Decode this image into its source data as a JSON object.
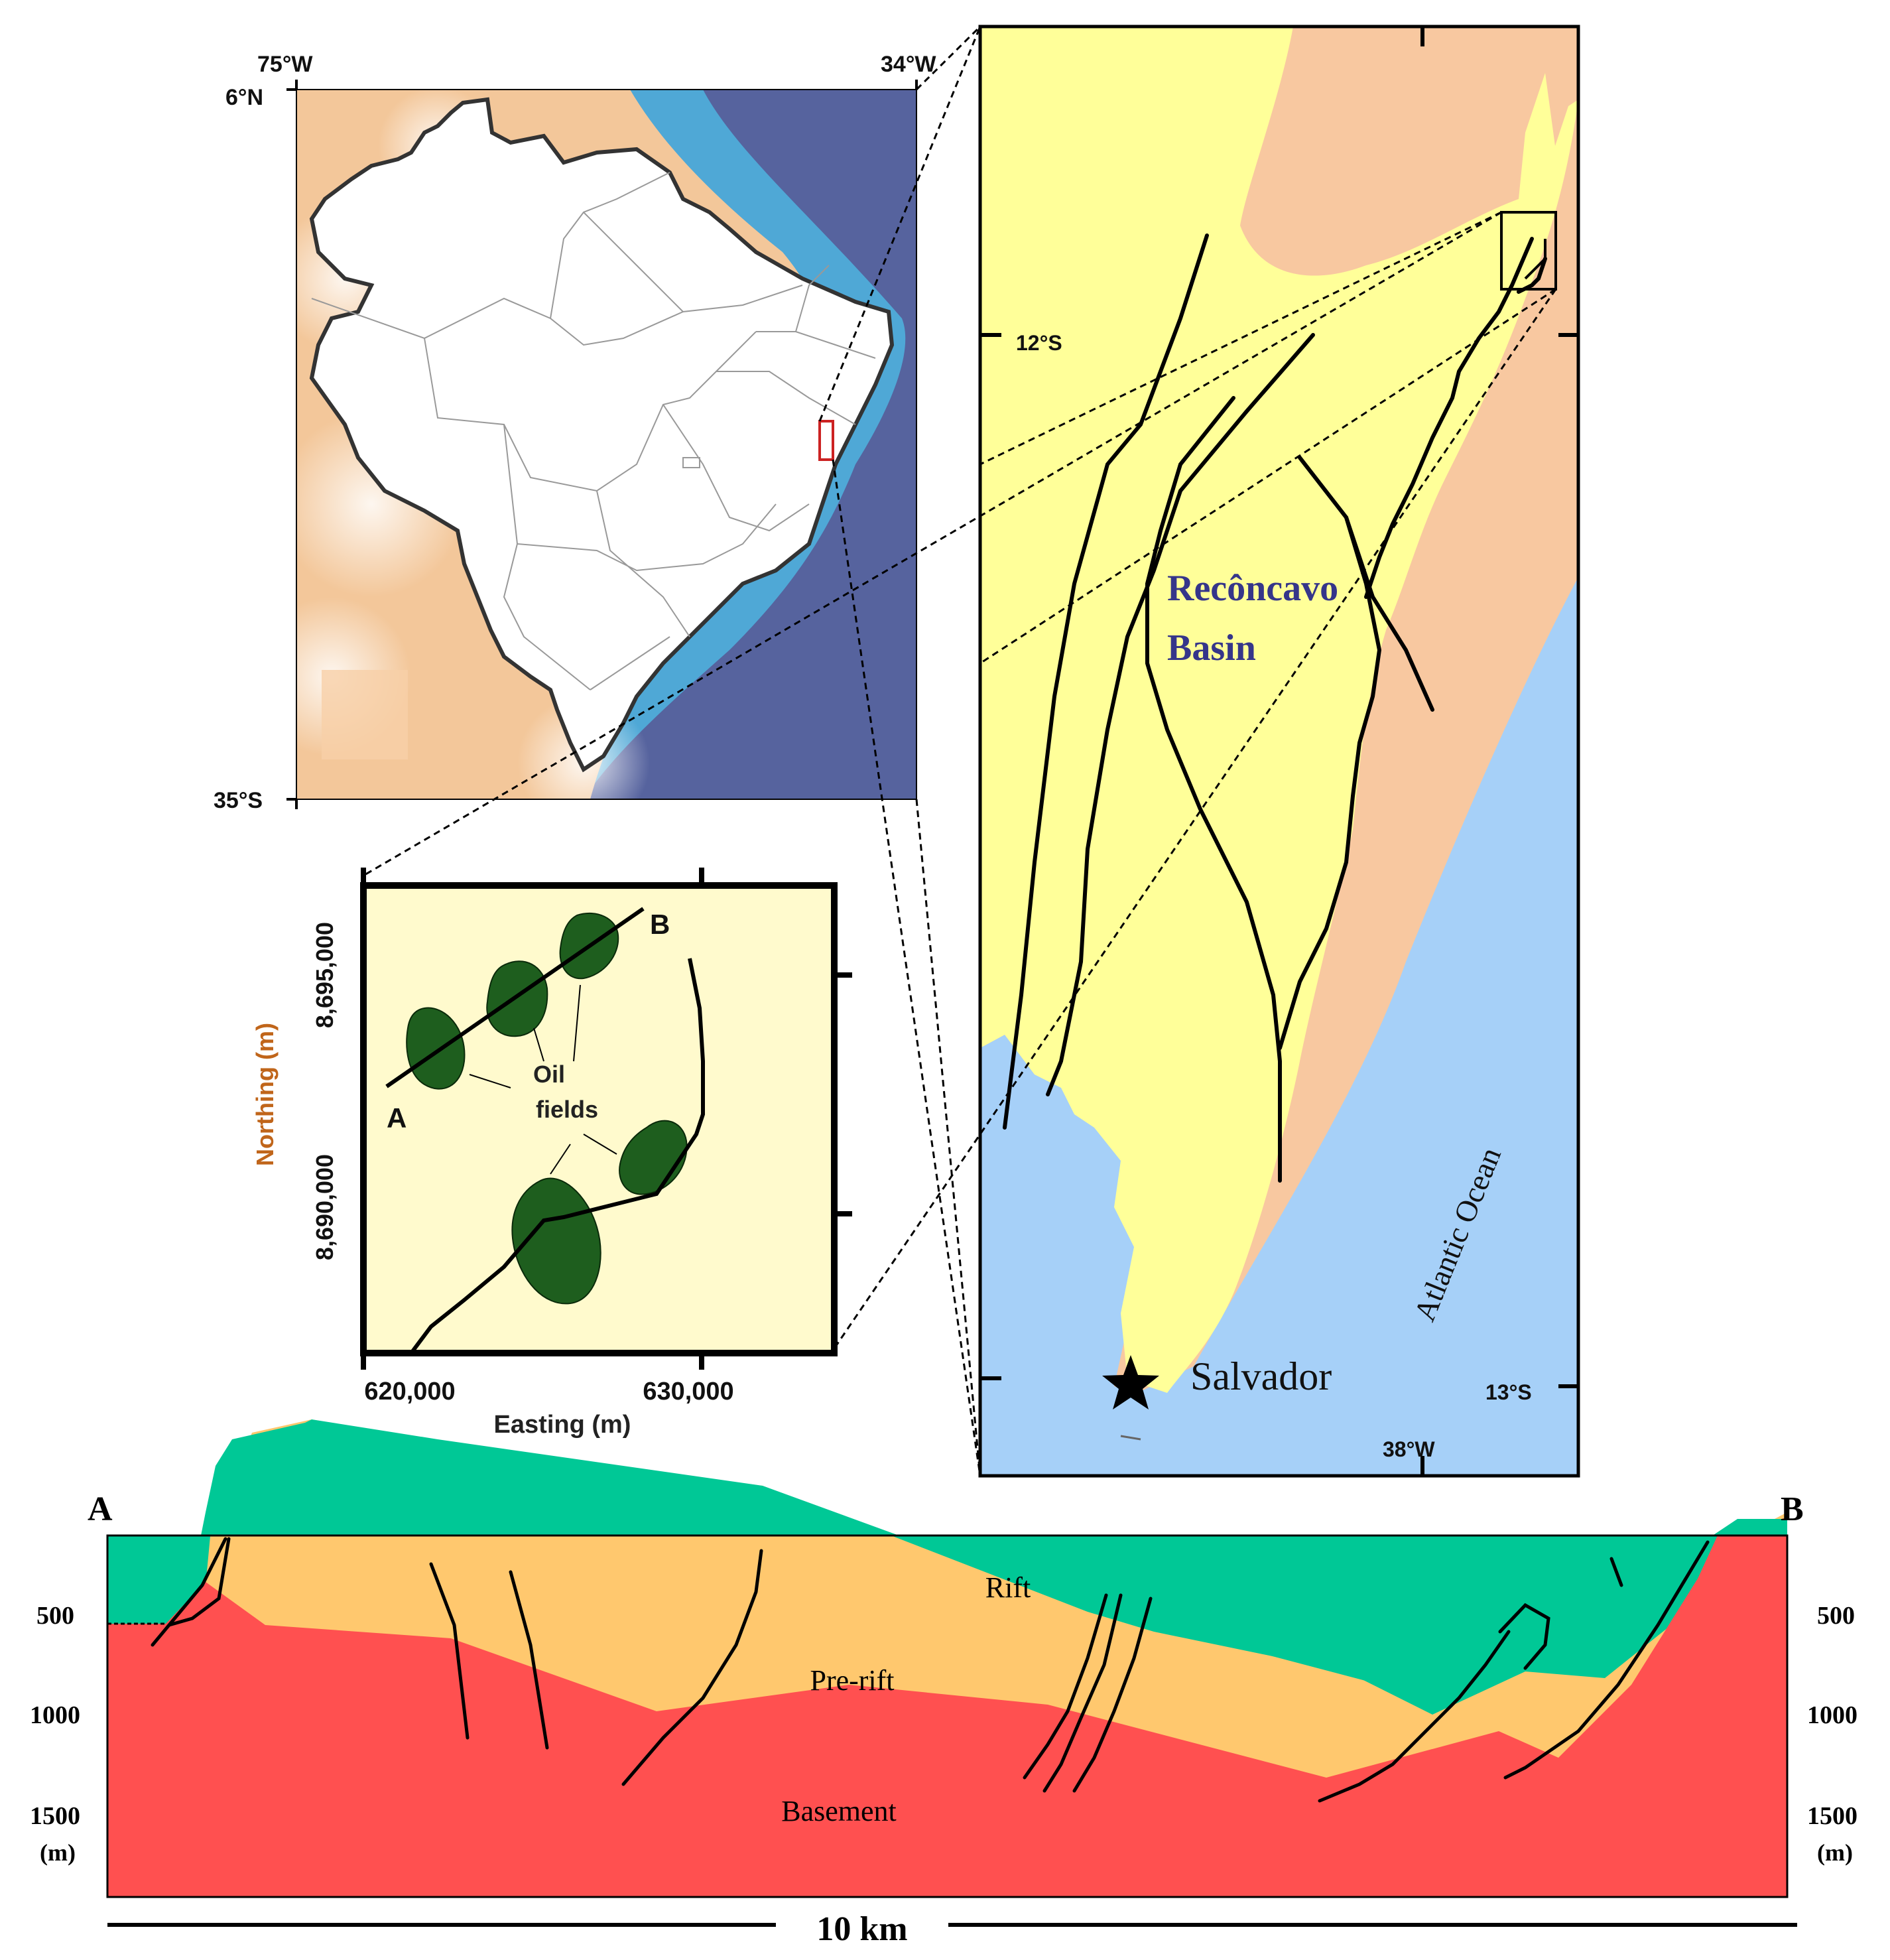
{
  "brazil_map": {
    "lon_left": "75°W",
    "lon_right": "34°W",
    "lat_top": "6°N",
    "lat_bottom": "35°S",
    "colors": {
      "ocean_deep": "#56639e",
      "ocean_shelf": "#4fa8d6",
      "land_shade": "#f3c79a",
      "country": "#ffffff"
    }
  },
  "basin_map": {
    "lat_north": "12°S",
    "lat_south": "13°S",
    "lon": "38°W",
    "basin_name_line1": "Recôncavo",
    "basin_name_line2": "Basin",
    "ocean_label": "Atlantic Ocean",
    "city": "Salvador",
    "colors": {
      "basin": "#ffff99",
      "land": "#f8c8a0",
      "ocean": "#a6d0f8",
      "basin_label": "#35358a"
    }
  },
  "field_map": {
    "y_axis_title": "Northing (m)",
    "y_ticks": [
      "8,695,000",
      "8,690,000"
    ],
    "x_axis_title": "Easting (m)",
    "x_ticks": [
      "620,000",
      "630,000"
    ],
    "point_a": "A",
    "point_b": "B",
    "oil_label_line1": "Oil",
    "oil_label_line2": "fields",
    "colors": {
      "background": "#fffacd",
      "oil_field": "#1e5e1e",
      "axis_label": "#c0651a"
    }
  },
  "cross_section": {
    "left_end": "A",
    "right_end": "B",
    "depth_labels": [
      "500",
      "1000",
      "1500"
    ],
    "depth_unit": "(m)",
    "layer_rift": "Rift",
    "layer_prerift": "Pre-rift",
    "layer_basement": "Basement",
    "scale_label": "10 km",
    "colors": {
      "rift": "#00c896",
      "prerift": "#ffc86e",
      "basement": "#ff5050"
    }
  }
}
